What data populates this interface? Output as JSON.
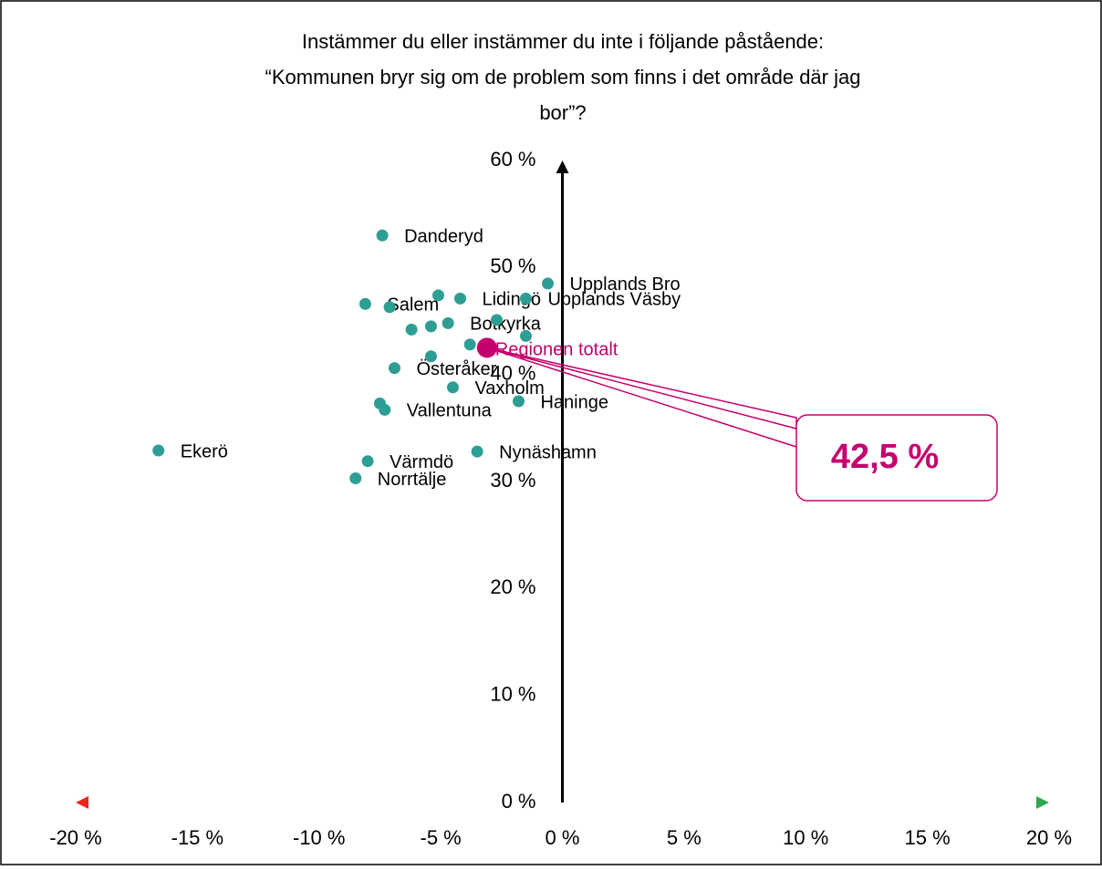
{
  "chart_data": {
    "type": "scatter",
    "title": [
      "Instämmer du eller instämmer du inte i följande påstående:",
      "“Kommunen bryr sig om de problem som finns i det område där jag",
      "bor”?"
    ],
    "xlim": [
      -20,
      20
    ],
    "ylim": [
      0,
      60
    ],
    "xticks": [
      {
        "value": -20,
        "label": "-20 %"
      },
      {
        "value": -15,
        "label": "-15 %"
      },
      {
        "value": -10,
        "label": "-10 %"
      },
      {
        "value": -5,
        "label": "-5 %"
      },
      {
        "value": 0,
        "label": "0 %"
      },
      {
        "value": 5,
        "label": "5 %"
      },
      {
        "value": 10,
        "label": "10 %"
      },
      {
        "value": 15,
        "label": "15 %"
      },
      {
        "value": 20,
        "label": "20 %"
      }
    ],
    "yticks": [
      {
        "value": 0,
        "label": "0 %"
      },
      {
        "value": 10,
        "label": "10 %"
      },
      {
        "value": 20,
        "label": "20 %"
      },
      {
        "value": 30,
        "label": "30 %"
      },
      {
        "value": 40,
        "label": "40 %"
      },
      {
        "value": 50,
        "label": "50 %"
      },
      {
        "value": 60,
        "label": "60 %"
      }
    ],
    "series": [
      {
        "name": null,
        "color": "#2e9e95",
        "labels": [
          "Danderyd",
          "Upplands Bro",
          "Lidingö",
          null,
          "Upplands Väsby",
          "Salem",
          null,
          null,
          null,
          "Botkyrka",
          null,
          null,
          null,
          null,
          "Österåker",
          "Vaxholm",
          "Haninge",
          null,
          "Vallentuna",
          "Ekerö",
          "Nynäshamn",
          "Värmdö",
          "Norrtälje"
        ],
        "x": [
          -7.4,
          -0.6,
          -4.2,
          -5.1,
          -1.5,
          -8.1,
          -7.1,
          -6.2,
          -5.4,
          -4.7,
          -2.7,
          -1.5,
          -3.8,
          -5.4,
          -6.9,
          -4.5,
          -1.8,
          -7.5,
          -7.3,
          -16.6,
          -3.5,
          -8.0,
          -8.5
        ],
        "values": [
          53.0,
          48.5,
          47.1,
          47.4,
          47.1,
          46.6,
          46.3,
          44.2,
          44.5,
          44.8,
          45.1,
          43.6,
          42.8,
          41.7,
          40.6,
          38.8,
          37.5,
          37.3,
          36.7,
          32.9,
          32.8,
          31.9,
          30.3
        ]
      },
      {
        "name": "Regionen totalt",
        "color": "#c4006e",
        "x": [
          -3.1
        ],
        "values": [
          42.5
        ],
        "value_labels": [
          "42,5 %"
        ]
      }
    ]
  }
}
